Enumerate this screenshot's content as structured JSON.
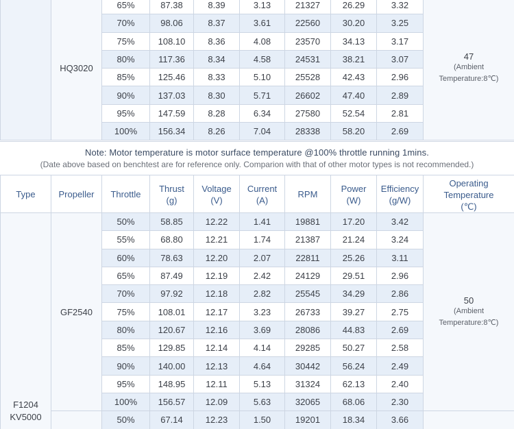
{
  "top_table": {
    "propeller": "HQ3020",
    "temperature": {
      "value": "47",
      "note_line1": "(Ambient",
      "note_line2": "Temperature:8℃)"
    },
    "rows": [
      {
        "throttle": "65%",
        "thrust": "87.38",
        "voltage": "8.39",
        "current": "3.13",
        "rpm": "21327",
        "power": "26.29",
        "efficiency": "3.32"
      },
      {
        "throttle": "70%",
        "thrust": "98.06",
        "voltage": "8.37",
        "current": "3.61",
        "rpm": "22560",
        "power": "30.20",
        "efficiency": "3.25"
      },
      {
        "throttle": "75%",
        "thrust": "108.10",
        "voltage": "8.36",
        "current": "4.08",
        "rpm": "23570",
        "power": "34.13",
        "efficiency": "3.17"
      },
      {
        "throttle": "80%",
        "thrust": "117.36",
        "voltage": "8.34",
        "current": "4.58",
        "rpm": "24531",
        "power": "38.21",
        "efficiency": "3.07"
      },
      {
        "throttle": "85%",
        "thrust": "125.46",
        "voltage": "8.33",
        "current": "5.10",
        "rpm": "25528",
        "power": "42.43",
        "efficiency": "2.96"
      },
      {
        "throttle": "90%",
        "thrust": "137.03",
        "voltage": "8.30",
        "current": "5.71",
        "rpm": "26602",
        "power": "47.40",
        "efficiency": "2.89"
      },
      {
        "throttle": "95%",
        "thrust": "147.59",
        "voltage": "8.28",
        "current": "6.34",
        "rpm": "27580",
        "power": "52.54",
        "efficiency": "2.81"
      },
      {
        "throttle": "100%",
        "thrust": "156.34",
        "voltage": "8.26",
        "current": "7.04",
        "rpm": "28338",
        "power": "58.20",
        "efficiency": "2.69"
      }
    ]
  },
  "note": {
    "line1": "Note: Motor temperature is motor surface temperature @100% throttle running 1mins.",
    "line2": "(Date above based on benchtest are for reference only. Comparion with that of other motor types is not recommended.)"
  },
  "header": {
    "type": "Type",
    "propeller": "Propeller",
    "throttle": "Throttle",
    "thrust": [
      "Thrust",
      "(g)"
    ],
    "voltage": [
      "Voltage",
      "(V)"
    ],
    "current": [
      "Current",
      "(A)"
    ],
    "rpm": "RPM",
    "power": [
      "Power",
      "(W)"
    ],
    "efficiency": [
      "Efficiency",
      "(g/W)"
    ],
    "temperature": [
      "Operating",
      "Temperature",
      "(℃)"
    ]
  },
  "bottom_table": {
    "type": [
      "F1204",
      "KV5000"
    ],
    "propeller": "GF2540",
    "temperature": {
      "value": "50",
      "note_line1": "(Ambient",
      "note_line2": "Temperature:8℃)"
    },
    "rows": [
      {
        "throttle": "50%",
        "thrust": "58.85",
        "voltage": "12.22",
        "current": "1.41",
        "rpm": "19881",
        "power": "17.20",
        "efficiency": "3.42"
      },
      {
        "throttle": "55%",
        "thrust": "68.80",
        "voltage": "12.21",
        "current": "1.74",
        "rpm": "21387",
        "power": "21.24",
        "efficiency": "3.24"
      },
      {
        "throttle": "60%",
        "thrust": "78.63",
        "voltage": "12.20",
        "current": "2.07",
        "rpm": "22811",
        "power": "25.26",
        "efficiency": "3.11"
      },
      {
        "throttle": "65%",
        "thrust": "87.49",
        "voltage": "12.19",
        "current": "2.42",
        "rpm": "24129",
        "power": "29.51",
        "efficiency": "2.96"
      },
      {
        "throttle": "70%",
        "thrust": "97.92",
        "voltage": "12.18",
        "current": "2.82",
        "rpm": "25545",
        "power": "34.29",
        "efficiency": "2.86"
      },
      {
        "throttle": "75%",
        "thrust": "108.01",
        "voltage": "12.17",
        "current": "3.23",
        "rpm": "26733",
        "power": "39.27",
        "efficiency": "2.75"
      },
      {
        "throttle": "80%",
        "thrust": "120.67",
        "voltage": "12.16",
        "current": "3.69",
        "rpm": "28086",
        "power": "44.83",
        "efficiency": "2.69"
      },
      {
        "throttle": "85%",
        "thrust": "129.85",
        "voltage": "12.14",
        "current": "4.14",
        "rpm": "29285",
        "power": "50.27",
        "efficiency": "2.58"
      },
      {
        "throttle": "90%",
        "thrust": "140.00",
        "voltage": "12.13",
        "current": "4.64",
        "rpm": "30442",
        "power": "56.24",
        "efficiency": "2.49"
      },
      {
        "throttle": "95%",
        "thrust": "148.95",
        "voltage": "12.11",
        "current": "5.13",
        "rpm": "31324",
        "power": "62.13",
        "efficiency": "2.40"
      },
      {
        "throttle": "100%",
        "thrust": "156.57",
        "voltage": "12.09",
        "current": "5.63",
        "rpm": "32065",
        "power": "68.06",
        "efficiency": "2.30"
      }
    ],
    "next_row": {
      "throttle": "50%",
      "thrust": "67.14",
      "voltage": "12.23",
      "current": "1.50",
      "rpm": "19201",
      "power": "18.34",
      "efficiency": "3.66"
    }
  },
  "colors": {
    "shaded_row": "#e6eef8",
    "border": "#cdd6e3",
    "header_text": "#3a5b8c"
  }
}
